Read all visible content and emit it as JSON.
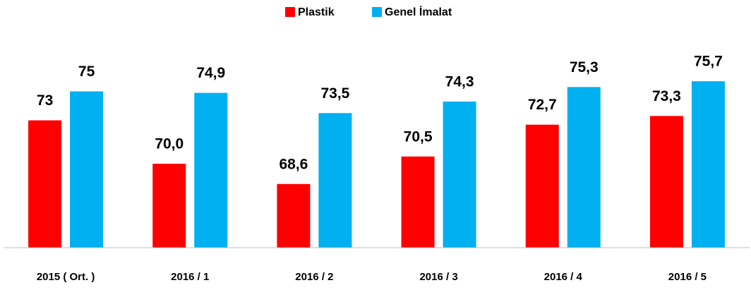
{
  "chart_data": {
    "type": "bar",
    "categories": [
      "2015 ( Ort. )",
      "2016 / 1",
      "2016 / 2",
      "2016 / 3",
      "2016 / 4",
      "2016 / 5"
    ],
    "series": [
      {
        "name": "Plastik",
        "color": "#ff0000",
        "values": [
          73,
          70.0,
          68.6,
          70.5,
          72.7,
          73.3
        ],
        "value_labels": [
          "73",
          "70,0",
          "68,6",
          "70,5",
          "72,7",
          "73,3"
        ]
      },
      {
        "name": "Genel İmalat",
        "color": "#00b0f0",
        "values": [
          75,
          74.9,
          73.5,
          74.3,
          75.3,
          75.7
        ],
        "value_labels": [
          "75",
          "74,9",
          "73,5",
          "74,3",
          "75,3",
          "75,7"
        ]
      }
    ],
    "ylim": [
      64.2,
      80
    ],
    "legend": "top"
  }
}
